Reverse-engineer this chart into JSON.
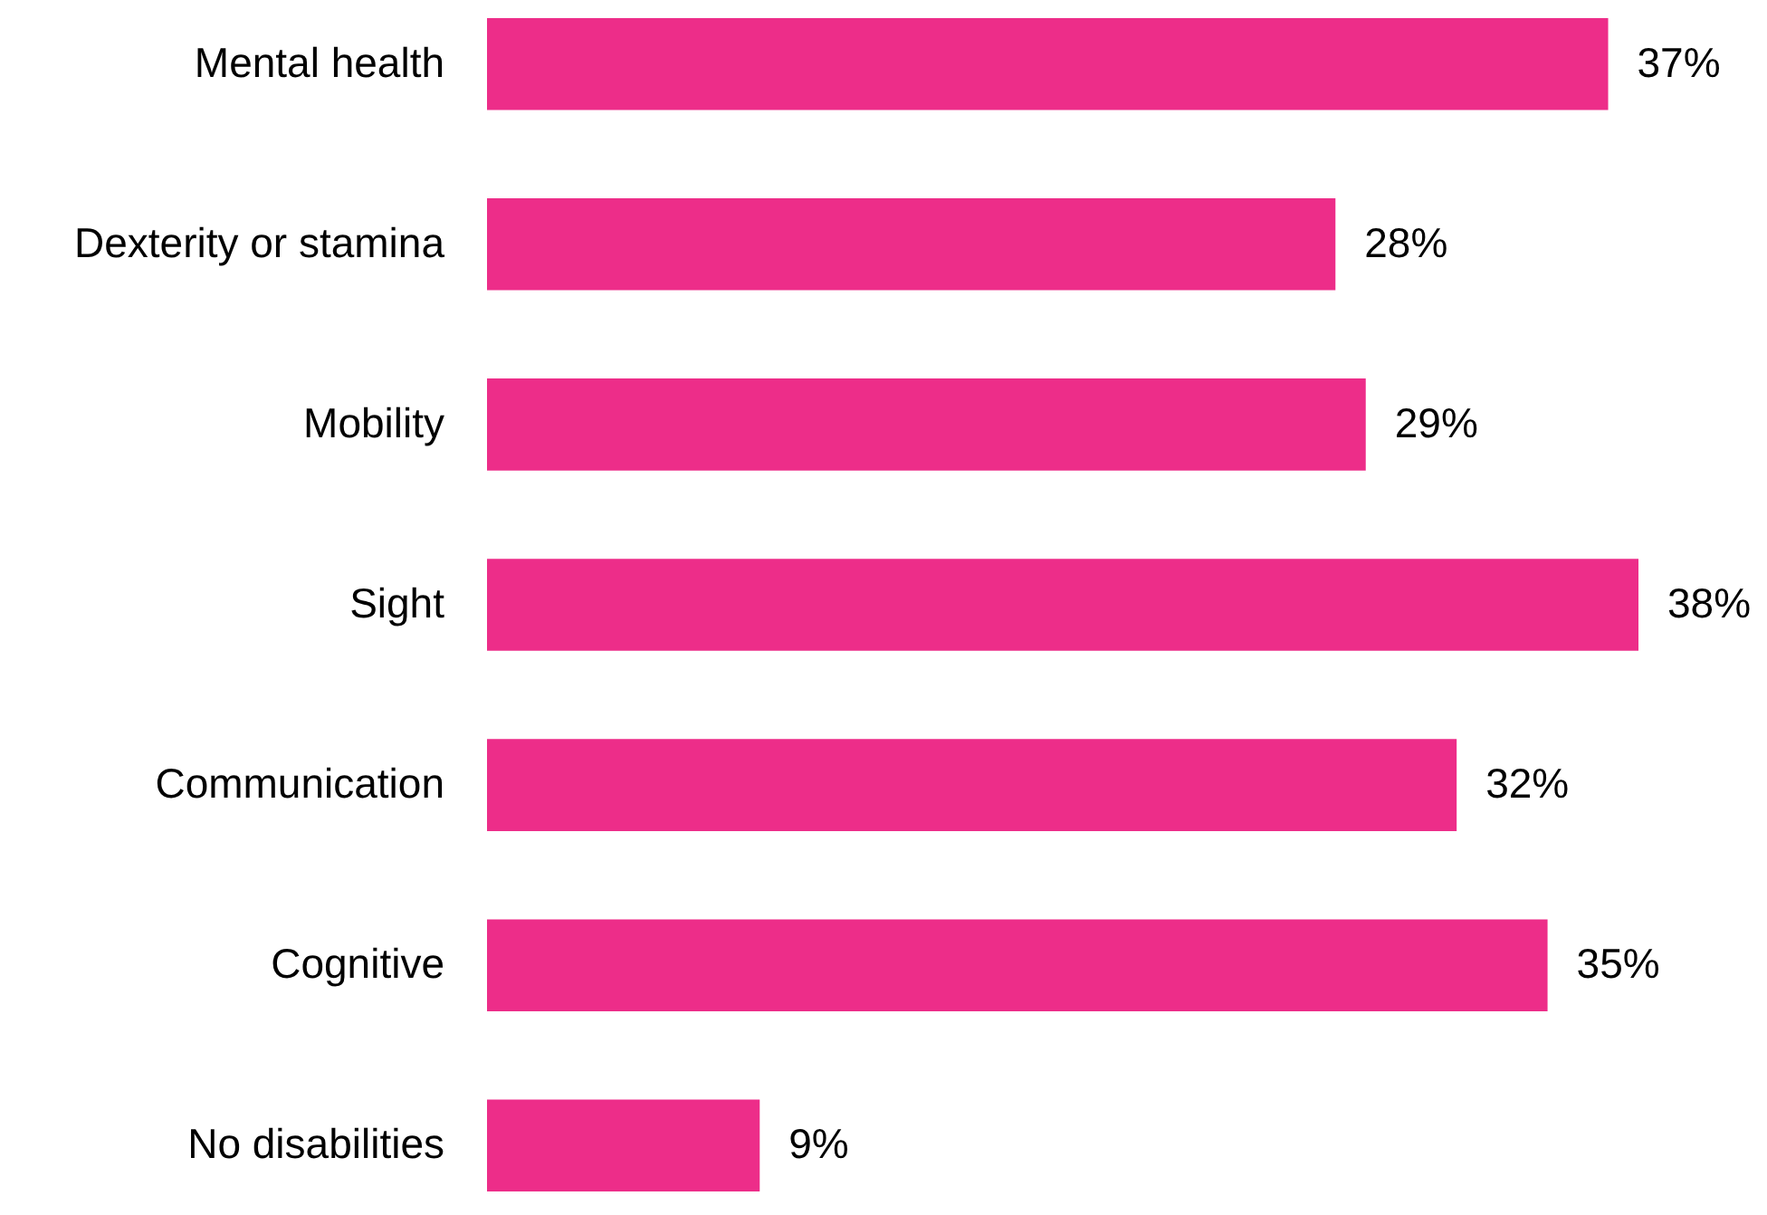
{
  "chart_data": {
    "type": "bar",
    "orientation": "horizontal",
    "categories": [
      "Mental health",
      "Dexterity or stamina",
      "Mobility",
      "Sight",
      "Communication",
      "Cognitive",
      "No disabilities"
    ],
    "values": [
      37,
      28,
      29,
      38,
      32,
      35,
      9
    ],
    "value_labels": [
      "37%",
      "28%",
      "29%",
      "38%",
      "32%",
      "35%",
      "9%"
    ],
    "color": "#ed2d89"
  }
}
